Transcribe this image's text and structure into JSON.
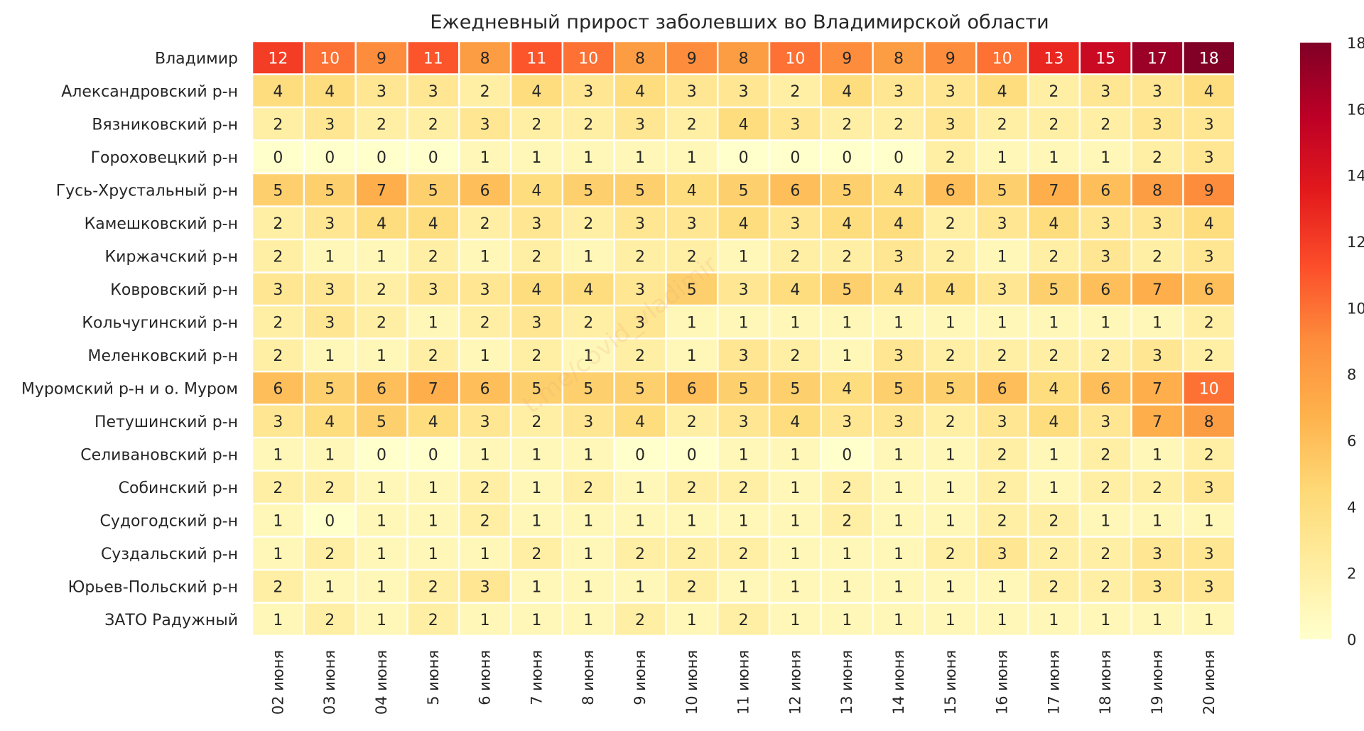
{
  "chart_data": {
    "type": "heatmap",
    "title": "Ежедневный прирост заболевших во Владимирской области",
    "watermark": "t.me/covid_vladimir",
    "rows": [
      "Владимир",
      "Александровский р-н",
      "Вязниковский р-н",
      "Гороховецкий р-н",
      "Гусь-Хрустальный р-н",
      "Камешковский р-н",
      "Киржачский р-н",
      "Ковровский р-н",
      "Кольчугинский р-н",
      "Меленковский р-н",
      "Муромский р-н и о. Муром",
      "Петушинский р-н",
      "Селивановский р-н",
      "Собинский р-н",
      "Судогодский р-н",
      "Суздальский р-н",
      "Юрьев-Польский р-н",
      "ЗАТО Радужный"
    ],
    "columns": [
      "02 июня",
      "03 июня",
      "04 июня",
      "5 июня",
      "6 июня",
      "7 июня",
      "8 июня",
      "9 июня",
      "10 июня",
      "11 июня",
      "12 июня",
      "13 июня",
      "14 июня",
      "15 июня",
      "16 июня",
      "17 июня",
      "18 июня",
      "19 июня",
      "20 июня"
    ],
    "values": [
      [
        12,
        10,
        9,
        11,
        8,
        11,
        10,
        8,
        9,
        8,
        10,
        9,
        8,
        9,
        10,
        13,
        15,
        17,
        18
      ],
      [
        4,
        4,
        3,
        3,
        2,
        4,
        3,
        4,
        3,
        3,
        2,
        4,
        3,
        3,
        4,
        2,
        3,
        3,
        4
      ],
      [
        2,
        3,
        2,
        2,
        3,
        2,
        2,
        3,
        2,
        4,
        3,
        2,
        2,
        3,
        2,
        2,
        2,
        3,
        3
      ],
      [
        0,
        0,
        0,
        0,
        1,
        1,
        1,
        1,
        1,
        0,
        0,
        0,
        0,
        2,
        1,
        1,
        1,
        2,
        3
      ],
      [
        5,
        5,
        7,
        5,
        6,
        4,
        5,
        5,
        4,
        5,
        6,
        5,
        4,
        6,
        5,
        7,
        6,
        8,
        9
      ],
      [
        2,
        3,
        4,
        4,
        2,
        3,
        2,
        3,
        3,
        4,
        3,
        4,
        4,
        2,
        3,
        4,
        3,
        3,
        4
      ],
      [
        2,
        1,
        1,
        2,
        1,
        2,
        1,
        2,
        2,
        1,
        2,
        2,
        3,
        2,
        1,
        2,
        3,
        2,
        3
      ],
      [
        3,
        3,
        2,
        3,
        3,
        4,
        4,
        3,
        5,
        3,
        4,
        5,
        4,
        4,
        3,
        5,
        6,
        7,
        6
      ],
      [
        2,
        3,
        2,
        1,
        2,
        3,
        2,
        3,
        1,
        1,
        1,
        1,
        1,
        1,
        1,
        1,
        1,
        1,
        2
      ],
      [
        2,
        1,
        1,
        2,
        1,
        2,
        1,
        2,
        1,
        3,
        2,
        1,
        3,
        2,
        2,
        2,
        2,
        3,
        2
      ],
      [
        6,
        5,
        6,
        7,
        6,
        5,
        5,
        5,
        6,
        5,
        5,
        4,
        5,
        5,
        6,
        4,
        6,
        7,
        10
      ],
      [
        3,
        4,
        5,
        4,
        3,
        2,
        3,
        4,
        2,
        3,
        4,
        3,
        3,
        2,
        3,
        4,
        3,
        7,
        8
      ],
      [
        1,
        1,
        0,
        0,
        1,
        1,
        1,
        0,
        0,
        1,
        1,
        0,
        1,
        1,
        2,
        1,
        2,
        1,
        2
      ],
      [
        2,
        2,
        1,
        1,
        2,
        1,
        2,
        1,
        2,
        2,
        1,
        2,
        1,
        1,
        2,
        1,
        2,
        2,
        3
      ],
      [
        1,
        0,
        1,
        1,
        2,
        1,
        1,
        1,
        1,
        1,
        1,
        2,
        1,
        1,
        2,
        2,
        1,
        1,
        1
      ],
      [
        1,
        2,
        1,
        1,
        1,
        2,
        1,
        2,
        2,
        2,
        1,
        1,
        1,
        2,
        3,
        2,
        2,
        3,
        3
      ],
      [
        2,
        1,
        1,
        2,
        3,
        1,
        1,
        1,
        2,
        1,
        1,
        1,
        1,
        1,
        1,
        2,
        2,
        3,
        3
      ],
      [
        1,
        2,
        1,
        2,
        1,
        1,
        1,
        2,
        1,
        2,
        1,
        1,
        1,
        1,
        1,
        1,
        1,
        1,
        1
      ]
    ],
    "vmin": 0,
    "vmax": 18,
    "colormap": [
      "#ffffcc",
      "#ffeda0",
      "#fed976",
      "#feb24c",
      "#fd8d3c",
      "#fc4e2a",
      "#e31a1c",
      "#bd0026",
      "#800026"
    ],
    "colorbar_ticks": [
      0,
      2,
      4,
      6,
      8,
      10,
      12,
      14,
      16,
      18
    ]
  }
}
